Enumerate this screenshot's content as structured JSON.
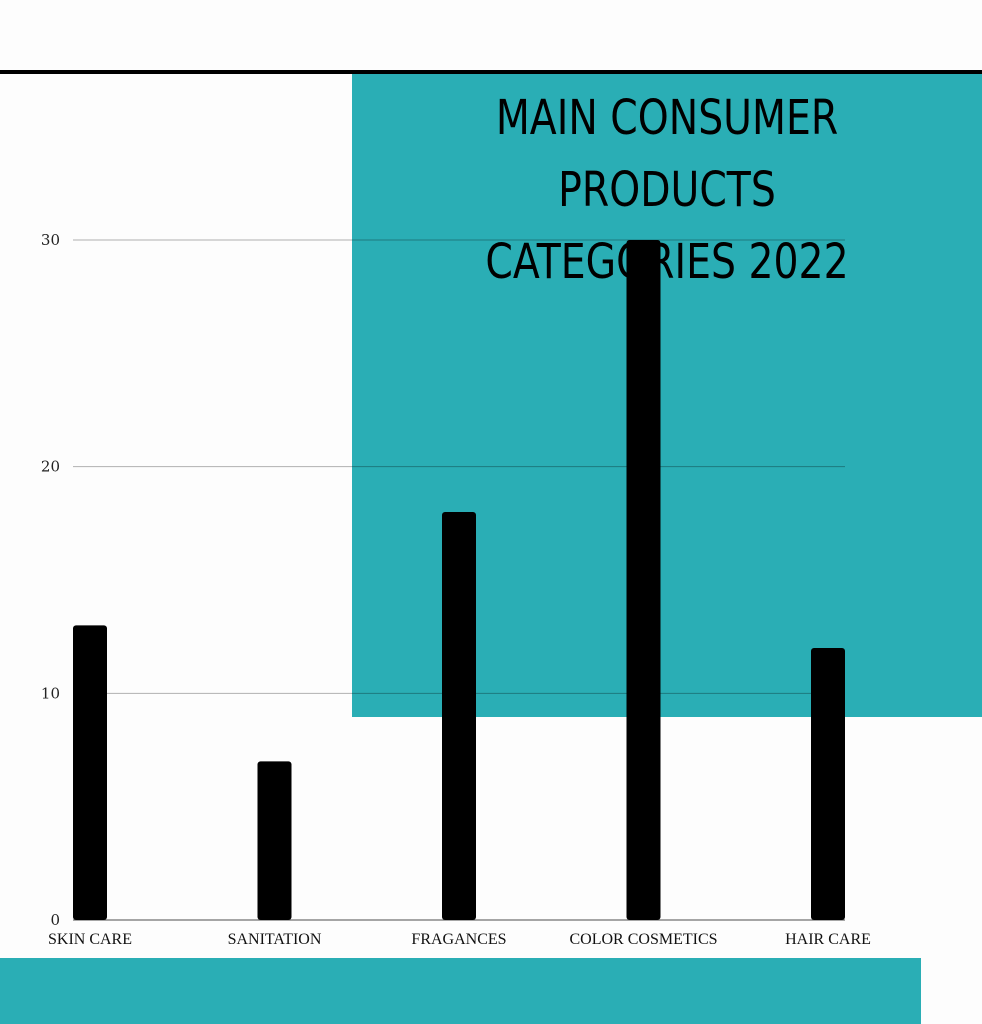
{
  "chart_data": {
    "type": "bar",
    "title": "MAIN CONSUMER PRODUCTS CATEGORIES 2022",
    "title_lines": [
      "MAIN CONSUMER PRODUCTS",
      "CATEGORIES 2022"
    ],
    "categories": [
      "SKIN CARE",
      "SANITATION",
      "FRAGANCES",
      "COLOR COSMETICS",
      "HAIR CARE"
    ],
    "values": [
      13,
      7,
      18,
      30,
      12
    ],
    "xlabel": "",
    "ylabel": "",
    "ylim": [
      0,
      30
    ],
    "yticks": [
      0,
      10,
      20,
      30
    ],
    "grid": true,
    "bar_color": "#000000",
    "accent_color": "#2aaeb5"
  }
}
